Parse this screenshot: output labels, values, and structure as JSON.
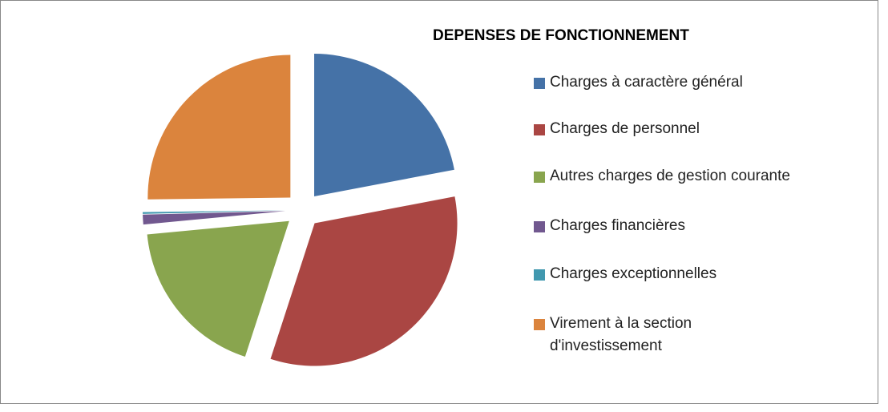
{
  "chart_data": {
    "type": "pie",
    "title": "DEPENSES DE FONCTIONNEMENT",
    "categories": [
      "Charges à caractère général",
      "Charges de personnel",
      "Autres charges de gestion courante",
      "Charges financières",
      "Charges exceptionnelles",
      "Virement à la section d'investissement"
    ],
    "values": [
      22,
      33,
      18.5,
      1.1,
      0.2,
      25.2
    ],
    "colors": [
      "#4572a7",
      "#aa4643",
      "#89a54e",
      "#71588f",
      "#4198af",
      "#db843d"
    ],
    "legend": "right"
  }
}
